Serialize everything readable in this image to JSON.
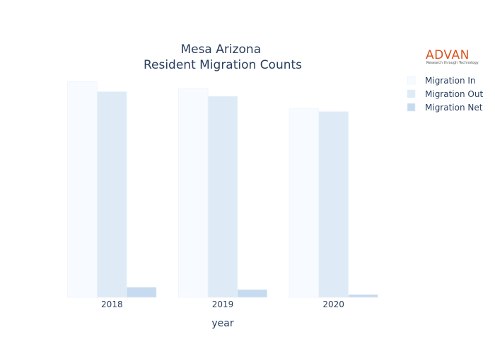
{
  "logo": {
    "name": "ADVAN",
    "tagline": "Research through Technology"
  },
  "chart_data": {
    "type": "bar",
    "title_lines": [
      "Mesa Arizona",
      "Resident Migration Counts"
    ],
    "xlabel": "year",
    "ylabel": "",
    "categories": [
      "2018",
      "2019",
      "2020"
    ],
    "series": [
      {
        "name": "Migration In",
        "color": "#f7fbff",
        "values": [
          100,
          96.8,
          87.4
        ]
      },
      {
        "name": "Migration Out",
        "color": "#deebf7",
        "values": [
          95.3,
          93.2,
          86.1
        ]
      },
      {
        "name": "Migration Net",
        "color": "#c6dbef",
        "values": [
          4.7,
          3.6,
          1.3
        ]
      }
    ],
    "ylim": [
      0,
      105
    ],
    "yticks_visible": false,
    "grid": false,
    "legend_position": "top-right"
  }
}
